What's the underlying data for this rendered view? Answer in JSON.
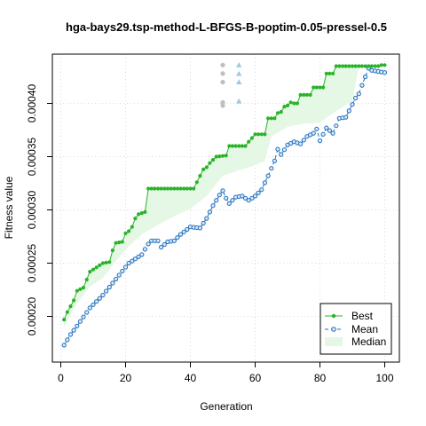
{
  "chart_data": {
    "type": "line",
    "title": "hga-bays29.tsp-method-L-BFGS-B-poptim-0.05-pressel-0.5",
    "xlabel": "Generation",
    "ylabel": "Fitness value",
    "xlim": [
      0,
      100
    ],
    "ylim": [
      0.00017,
      0.000445
    ],
    "x_ticks": [
      0,
      20,
      40,
      60,
      80,
      100
    ],
    "y_ticks": [
      0.0002,
      0.00025,
      0.0003,
      0.00035,
      0.0004
    ],
    "x_tick_labels": [
      "0",
      "20",
      "40",
      "60",
      "80",
      "100"
    ],
    "y_tick_labels": [
      "0.00020",
      "0.00025",
      "0.00030",
      "0.00035",
      "0.00040"
    ],
    "grid": true,
    "legend_position": "bottom-right",
    "colors": {
      "best": "#2ab32a",
      "mean": "#1f6fbf",
      "median_fill": "#e5f7e5",
      "outlier_gray": "#bfbfbf",
      "outlier_blue": "#9ecae1"
    },
    "series": [
      {
        "name": "Best",
        "anchors": [
          [
            1,
            0.000197
          ],
          [
            2,
            0.000204
          ],
          [
            4,
            0.000215
          ],
          [
            5,
            0.000224
          ],
          [
            7,
            0.000227
          ],
          [
            9,
            0.000242
          ],
          [
            13,
            0.00025
          ],
          [
            15,
            0.000251
          ],
          [
            16,
            0.000262
          ],
          [
            17,
            0.000269
          ],
          [
            19,
            0.00027
          ],
          [
            20,
            0.000278
          ],
          [
            21,
            0.00028
          ],
          [
            22,
            0.000284
          ],
          [
            23,
            0.000292
          ],
          [
            24,
            0.000296
          ],
          [
            26,
            0.000298
          ],
          [
            27,
            0.00032
          ],
          [
            41,
            0.00032
          ],
          [
            42,
            0.000326
          ],
          [
            44,
            0.000338
          ],
          [
            45,
            0.00034
          ],
          [
            46,
            0.000344
          ],
          [
            48,
            0.00035
          ],
          [
            51,
            0.000351
          ],
          [
            52,
            0.00036
          ],
          [
            57,
            0.00036
          ],
          [
            58,
            0.000364
          ],
          [
            60,
            0.000371
          ],
          [
            63,
            0.000371
          ],
          [
            64,
            0.000386
          ],
          [
            66,
            0.000386
          ],
          [
            67,
            0.000391
          ],
          [
            68,
            0.000392
          ],
          [
            69,
            0.000397
          ],
          [
            70,
            0.000398
          ],
          [
            71,
            0.000401
          ],
          [
            72,
            0.0004
          ],
          [
            73,
            0.0004
          ],
          [
            74,
            0.000408
          ],
          [
            77,
            0.000408
          ],
          [
            78,
            0.000415
          ],
          [
            81,
            0.000415
          ],
          [
            82,
            0.000428
          ],
          [
            84,
            0.000428
          ],
          [
            85,
            0.000435
          ],
          [
            98,
            0.000435
          ],
          [
            99,
            0.000436
          ],
          [
            100,
            0.000436
          ]
        ]
      },
      {
        "name": "Mean",
        "anchors": [
          [
            1,
            0.000173
          ],
          [
            3,
            0.000183
          ],
          [
            5,
            0.000191
          ],
          [
            9,
            0.000208
          ],
          [
            13,
            0.00022
          ],
          [
            17,
            0.000235
          ],
          [
            21,
            0.00025
          ],
          [
            25,
            0.000258
          ],
          [
            27,
            0.000268
          ],
          [
            28,
            0.000271
          ],
          [
            30,
            0.000271
          ],
          [
            31,
            0.000265
          ],
          [
            33,
            0.00027
          ],
          [
            35,
            0.000271
          ],
          [
            37,
            0.000277
          ],
          [
            40,
            0.000284
          ],
          [
            43,
            0.000283
          ],
          [
            45,
            0.000292
          ],
          [
            47,
            0.000304
          ],
          [
            49,
            0.000314
          ],
          [
            50,
            0.000318
          ],
          [
            51,
            0.000311
          ],
          [
            52,
            0.000306
          ],
          [
            54,
            0.000312
          ],
          [
            56,
            0.000313
          ],
          [
            58,
            0.000309
          ],
          [
            60,
            0.000313
          ],
          [
            62,
            0.000319
          ],
          [
            64,
            0.000332
          ],
          [
            66,
            0.000346
          ],
          [
            67,
            0.000357
          ],
          [
            68,
            0.000352
          ],
          [
            70,
            0.000361
          ],
          [
            72,
            0.000364
          ],
          [
            74,
            0.000362
          ],
          [
            76,
            0.000369
          ],
          [
            78,
            0.000372
          ],
          [
            79,
            0.000376
          ],
          [
            80,
            0.000365
          ],
          [
            82,
            0.000377
          ],
          [
            84,
            0.000372
          ],
          [
            86,
            0.000386
          ],
          [
            88,
            0.000387
          ],
          [
            90,
            0.000399
          ],
          [
            91,
            0.000405
          ],
          [
            92,
            0.000409
          ],
          [
            93,
            0.000417
          ],
          [
            94,
            0.000425
          ],
          [
            95,
            0.000433
          ],
          [
            96,
            0.000431
          ],
          [
            98,
            0.00043
          ],
          [
            100,
            0.000429
          ]
        ]
      },
      {
        "name": "Median",
        "upper": [
          [
            1,
            0.000197
          ],
          [
            2,
            0.000204
          ],
          [
            4,
            0.000215
          ],
          [
            5,
            0.000224
          ],
          [
            7,
            0.000227
          ],
          [
            9,
            0.000242
          ],
          [
            13,
            0.00025
          ],
          [
            15,
            0.000251
          ],
          [
            16,
            0.000262
          ],
          [
            17,
            0.000269
          ],
          [
            19,
            0.00027
          ],
          [
            20,
            0.000278
          ],
          [
            21,
            0.00028
          ],
          [
            22,
            0.000284
          ],
          [
            23,
            0.000292
          ],
          [
            24,
            0.000296
          ],
          [
            26,
            0.000298
          ],
          [
            27,
            0.00032
          ],
          [
            41,
            0.00032
          ],
          [
            42,
            0.000326
          ],
          [
            44,
            0.000338
          ],
          [
            45,
            0.00034
          ],
          [
            46,
            0.000344
          ],
          [
            48,
            0.00035
          ],
          [
            51,
            0.000351
          ],
          [
            52,
            0.00036
          ],
          [
            57,
            0.00036
          ],
          [
            58,
            0.000364
          ],
          [
            60,
            0.000371
          ],
          [
            63,
            0.000371
          ],
          [
            64,
            0.000386
          ],
          [
            66,
            0.000386
          ],
          [
            67,
            0.000391
          ],
          [
            68,
            0.000392
          ],
          [
            69,
            0.000397
          ],
          [
            70,
            0.000398
          ],
          [
            71,
            0.000401
          ],
          [
            72,
            0.0004
          ],
          [
            73,
            0.0004
          ],
          [
            74,
            0.000408
          ],
          [
            77,
            0.000408
          ],
          [
            78,
            0.000415
          ],
          [
            81,
            0.000415
          ],
          [
            82,
            0.000428
          ],
          [
            84,
            0.000428
          ],
          [
            85,
            0.000435
          ],
          [
            92,
            0.000435
          ]
        ],
        "lower": [
          [
            1,
            0.00019
          ],
          [
            5,
            0.000212
          ],
          [
            9,
            0.000228
          ],
          [
            13,
            0.000236
          ],
          [
            17,
            0.000252
          ],
          [
            21,
            0.000266
          ],
          [
            25,
            0.000277
          ],
          [
            30,
            0.000286
          ],
          [
            35,
            0.000294
          ],
          [
            40,
            0.000301
          ],
          [
            45,
            0.000313
          ],
          [
            50,
            0.000332
          ],
          [
            55,
            0.000337
          ],
          [
            60,
            0.000342
          ],
          [
            63,
            0.000346
          ],
          [
            65,
            0.000369
          ],
          [
            70,
            0.000378
          ],
          [
            75,
            0.000381
          ],
          [
            80,
            0.000382
          ],
          [
            85,
            0.000393
          ],
          [
            90,
            0.000402
          ],
          [
            92,
            0.000435
          ]
        ]
      }
    ],
    "outliers": [
      {
        "x": 50,
        "y": [
          0.000436,
          0.000428,
          0.00042,
          0.000401,
          0.000398
        ],
        "shape": "circle",
        "color": "gray"
      },
      {
        "x": 55,
        "y": [
          0.000436,
          0.000428,
          0.00042,
          0.000402
        ],
        "shape": "triangle",
        "color": "blue"
      }
    ]
  }
}
